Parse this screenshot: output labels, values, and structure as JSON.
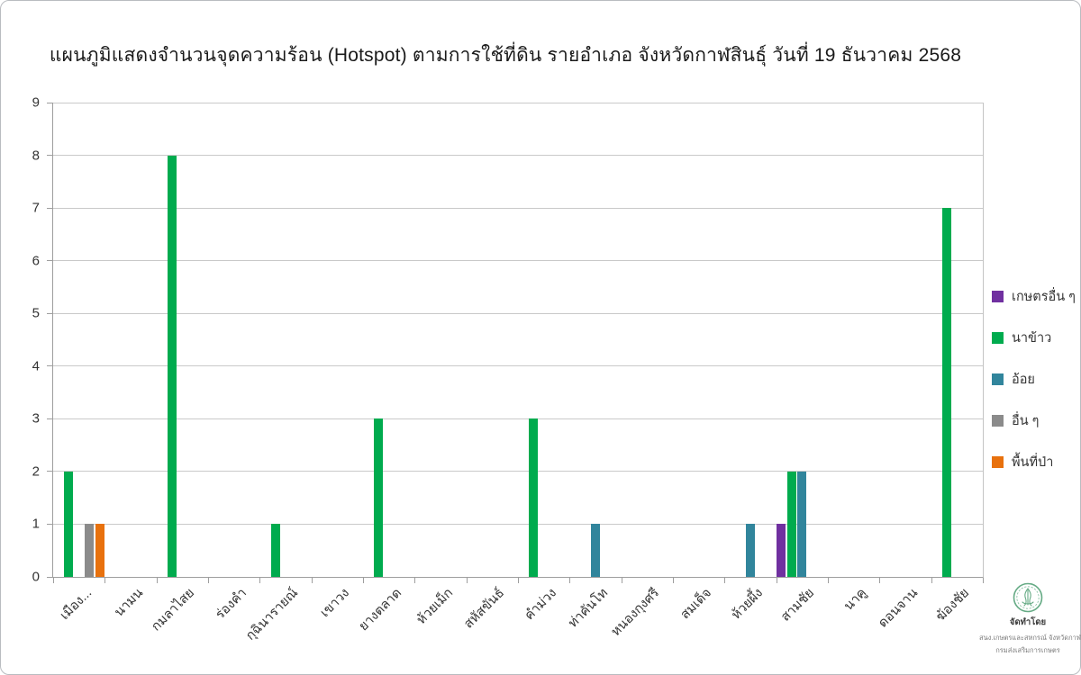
{
  "page": {
    "title": "แผนภูมิแสดงจำนวนจุดความร้อน (Hotspot)  ตามการใช้ที่ดิน รายอำเภอ จังหวัดกาฬสินธุ์ วันที่ 19 ธันวาคม 2568"
  },
  "chart_data": {
    "type": "bar",
    "title": "แผนภูมิแสดงจำนวนจุดความร้อน (Hotspot)  ตามการใช้ที่ดิน รายอำเภอ จังหวัดกาฬสินธุ์ วันที่ 19 ธันวาคม 2568",
    "xlabel": "",
    "ylabel": "",
    "ylim": [
      0,
      9
    ],
    "yticks": [
      0,
      1,
      2,
      3,
      4,
      5,
      6,
      7,
      8,
      9
    ],
    "grid": true,
    "legend_position": "right",
    "categories": [
      "เมือง...",
      "นามน",
      "กมลาไสย",
      "ร่องคำ",
      "กุฉินารายณ์",
      "เขาวง",
      "ยางตลาด",
      "ห้วยเม็ก",
      "สหัสขันธ์",
      "คำม่วง",
      "ท่าคันโท",
      "หนองกุงศรี",
      "สมเด็จ",
      "ห้วยผึ้ง",
      "สามชัย",
      "นาคู",
      "ดอนจาน",
      "ฆ้องชัย"
    ],
    "series": [
      {
        "name": "เกษตรอื่น ๆ",
        "color": "#7030a0",
        "values": [
          0,
          0,
          0,
          0,
          0,
          0,
          0,
          0,
          0,
          0,
          0,
          0,
          0,
          0,
          1,
          0,
          0,
          0
        ]
      },
      {
        "name": "นาข้าว",
        "color": "#00ab4e",
        "values": [
          2,
          0,
          8,
          0,
          1,
          0,
          3,
          0,
          0,
          3,
          0,
          0,
          0,
          0,
          2,
          0,
          0,
          7
        ]
      },
      {
        "name": "อ้อย",
        "color": "#31859c",
        "values": [
          0,
          0,
          0,
          0,
          0,
          0,
          0,
          0,
          0,
          0,
          1,
          0,
          0,
          1,
          2,
          0,
          0,
          0
        ]
      },
      {
        "name": "อื่น ๆ",
        "color": "#8b8b8b",
        "values": [
          1,
          0,
          0,
          0,
          0,
          0,
          0,
          0,
          0,
          0,
          0,
          0,
          0,
          0,
          0,
          0,
          0,
          0
        ]
      },
      {
        "name": "พื้นที่ป่า",
        "color": "#e8710d",
        "values": [
          1,
          0,
          0,
          0,
          0,
          0,
          0,
          0,
          0,
          0,
          0,
          0,
          0,
          0,
          0,
          0,
          0,
          0
        ]
      }
    ]
  },
  "footer": {
    "heading": "จัดทำโดย",
    "line1": "สนง.เกษตรและสหกรณ์ จังหวัดกาฬสินธุ์",
    "line2": "กรมส่งเสริมการเกษตร",
    "emblem_color": "#66ab85"
  }
}
